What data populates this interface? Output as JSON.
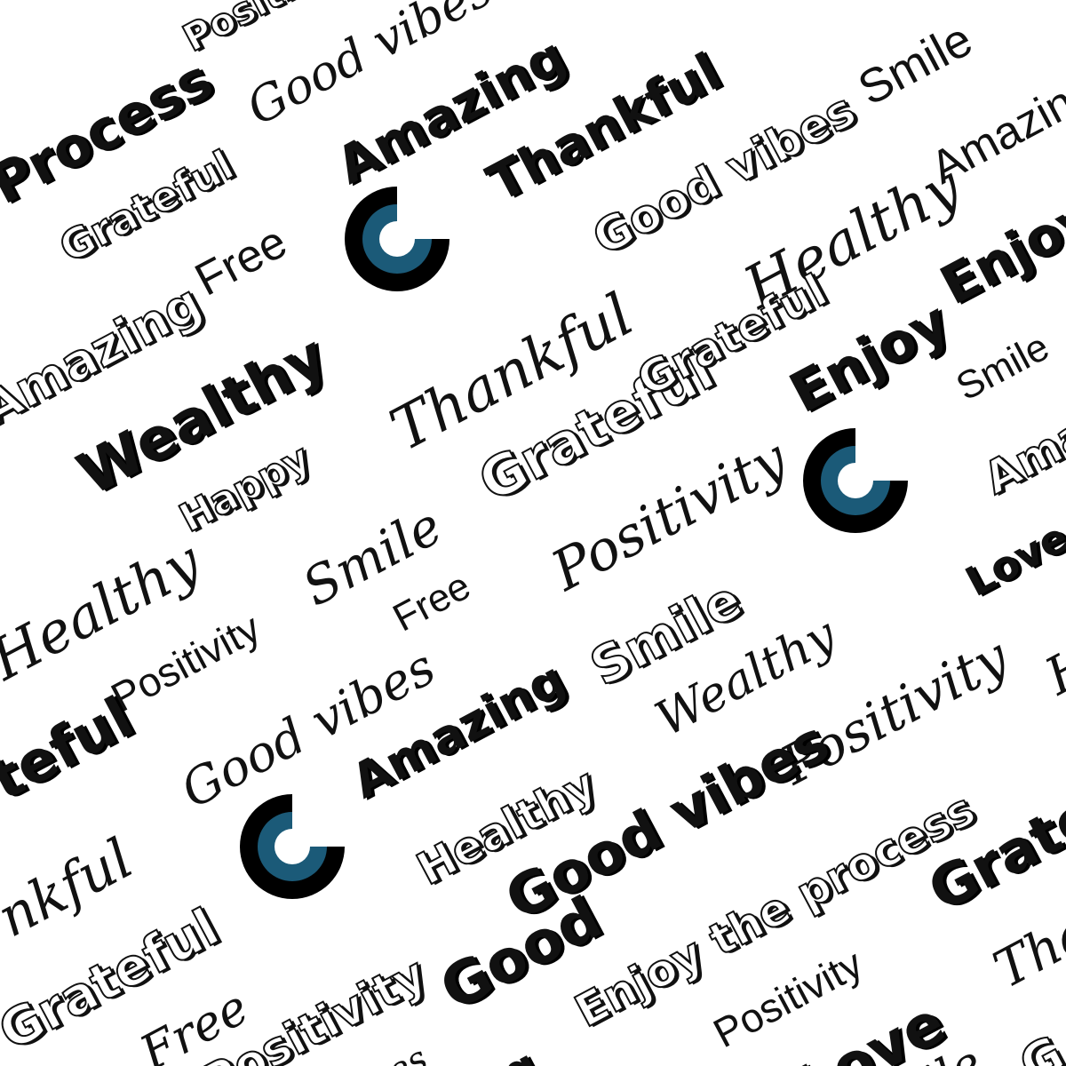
{
  "colors": {
    "ink": "#111111",
    "logo_dark": "#000000",
    "logo_teal": "#1b5a78",
    "background": "#ffffff"
  },
  "logos": [
    {
      "name": "fiverr-logo-icon"
    },
    {
      "name": "fiverr-logo-icon"
    },
    {
      "name": "fiverr-logo-icon"
    }
  ],
  "words": [
    {
      "text": "Positivity"
    },
    {
      "text": "Good vibes"
    },
    {
      "text": "Amazing"
    },
    {
      "text": "Thankful"
    },
    {
      "text": "Smile"
    },
    {
      "text": "Process"
    },
    {
      "text": "Grateful"
    },
    {
      "text": "Good vibes"
    },
    {
      "text": "Amazing"
    },
    {
      "text": "Free"
    },
    {
      "text": "Healthy"
    },
    {
      "text": "Enjoy the process"
    },
    {
      "text": "Amazing"
    },
    {
      "text": "Thankful"
    },
    {
      "text": "Grateful"
    },
    {
      "text": "Wealthy"
    },
    {
      "text": "Smile"
    },
    {
      "text": "Enjoy"
    },
    {
      "text": "Happy"
    },
    {
      "text": "Grateful"
    },
    {
      "text": "Positivity"
    },
    {
      "text": "Amazing"
    },
    {
      "text": "Healthy"
    },
    {
      "text": "Smile"
    },
    {
      "text": "Love"
    },
    {
      "text": "Positivity"
    },
    {
      "text": "Free"
    },
    {
      "text": "Smile"
    },
    {
      "text": "Good vibes"
    },
    {
      "text": "Wealthy"
    },
    {
      "text": "Positivity"
    },
    {
      "text": "teful"
    },
    {
      "text": "Amazing"
    },
    {
      "text": "H"
    },
    {
      "text": "Healthy"
    },
    {
      "text": "Good vibes"
    },
    {
      "text": "Grate"
    },
    {
      "text": "Enjoy the process"
    },
    {
      "text": "nkful"
    },
    {
      "text": "Good"
    },
    {
      "text": "Grateful"
    },
    {
      "text": "Positivity"
    },
    {
      "text": "Positivity"
    },
    {
      "text": "Tha"
    },
    {
      "text": "Free"
    },
    {
      "text": "Love"
    },
    {
      "text": "ile"
    },
    {
      "text": "G"
    },
    {
      "text": "ibes"
    },
    {
      "text": "g"
    }
  ]
}
